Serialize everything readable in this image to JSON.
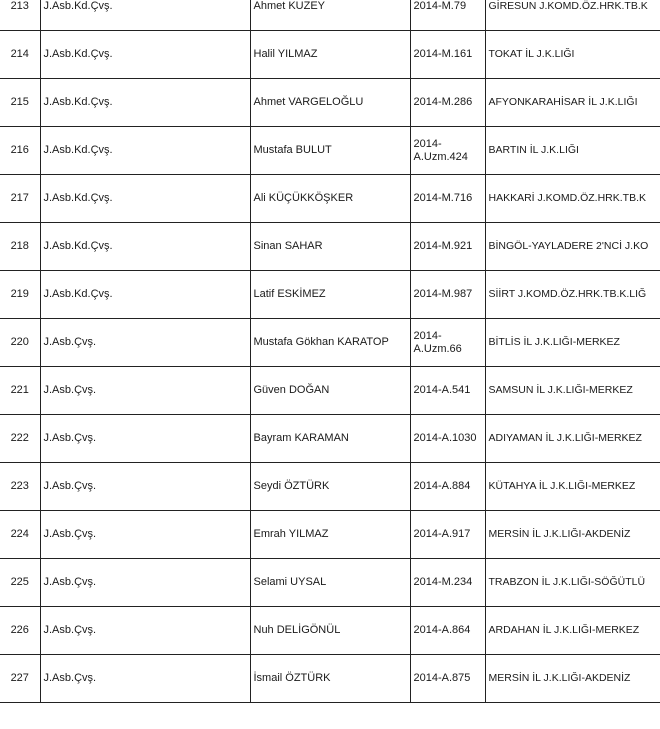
{
  "rows": [
    {
      "no": "213",
      "rank": "J.Asb.Kd.Çvş.",
      "name": "Ahmet KUZEY",
      "sicil": "2014-M.79",
      "unit": "GİRESUN J.KOMD.ÖZ.HRK.TB.K"
    },
    {
      "no": "214",
      "rank": "J.Asb.Kd.Çvş.",
      "name": "Halil YILMAZ",
      "sicil": "2014-M.161",
      "unit": "TOKAT İL J.K.LIĞI"
    },
    {
      "no": "215",
      "rank": "J.Asb.Kd.Çvş.",
      "name": "Ahmet VARGELOĞLU",
      "sicil": "2014-M.286",
      "unit": "AFYONKARAHİSAR  İL J.K.LIĞI"
    },
    {
      "no": "216",
      "rank": "J.Asb.Kd.Çvş.",
      "name": "Mustafa BULUT",
      "sicil": "2014-A.Uzm.424",
      "unit": "BARTIN İL J.K.LIĞI"
    },
    {
      "no": "217",
      "rank": "J.Asb.Kd.Çvş.",
      "name": "Ali KÜÇÜKKÖŞKER",
      "sicil": "2014-M.716",
      "unit": "HAKKARİ J.KOMD.ÖZ.HRK.TB.K"
    },
    {
      "no": "218",
      "rank": "J.Asb.Kd.Çvş.",
      "name": "Sinan SAHAR",
      "sicil": "2014-M.921",
      "unit": "BİNGÖL-YAYLADERE 2'NCİ J.KO"
    },
    {
      "no": "219",
      "rank": "J.Asb.Kd.Çvş.",
      "name": "Latif ESKİMEZ",
      "sicil": "2014-M.987",
      "unit": "SİİRT J.KOMD.ÖZ.HRK.TB.K.LIĞ"
    },
    {
      "no": "220",
      "rank": "J.Asb.Çvş.",
      "name": "Mustafa Gökhan KARATOP",
      "sicil": "2014-A.Uzm.66",
      "unit": "BİTLİS İL J.K.LIĞI-MERKEZ"
    },
    {
      "no": "221",
      "rank": "J.Asb.Çvş.",
      "name": "Güven DOĞAN",
      "sicil": "2014-A.541",
      "unit": "SAMSUN İL J.K.LIĞI-MERKEZ"
    },
    {
      "no": "222",
      "rank": "J.Asb.Çvş.",
      "name": "Bayram KARAMAN",
      "sicil": "2014-A.1030",
      "unit": "ADIYAMAN İL J.K.LIĞI-MERKEZ"
    },
    {
      "no": "223",
      "rank": "J.Asb.Çvş.",
      "name": "Seydi ÖZTÜRK",
      "sicil": "2014-A.884",
      "unit": "KÜTAHYA İL J.K.LIĞI-MERKEZ"
    },
    {
      "no": "224",
      "rank": "J.Asb.Çvş.",
      "name": "Emrah YILMAZ",
      "sicil": "2014-A.917",
      "unit": "MERSİN İL J.K.LIĞI-AKDENİZ"
    },
    {
      "no": "225",
      "rank": "J.Asb.Çvş.",
      "name": "Selami UYSAL",
      "sicil": "2014-M.234",
      "unit": "TRABZON İL J.K.LIĞI-SÖĞÜTLÜ"
    },
    {
      "no": "226",
      "rank": "J.Asb.Çvş.",
      "name": "Nuh DELİGÖNÜL",
      "sicil": "2014-A.864",
      "unit": "ARDAHAN İL J.K.LIĞI-MERKEZ"
    },
    {
      "no": "227",
      "rank": "J.Asb.Çvş.",
      "name": "İsmail ÖZTÜRK",
      "sicil": "2014-A.875",
      "unit": "MERSİN İL J.K.LIĞI-AKDENİZ"
    }
  ]
}
